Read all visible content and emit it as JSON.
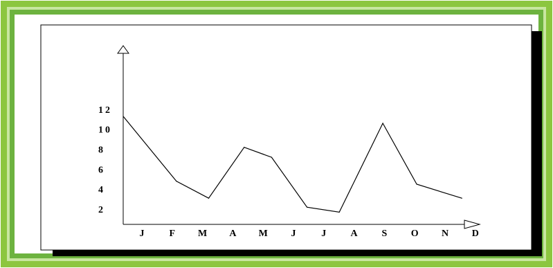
{
  "colors": {
    "frame_outer": "#8cc63f",
    "frame_inner": "#6db33f",
    "frame_light": "#c8e6a0",
    "shadow": "#000000",
    "panel": "#ffffff",
    "line": "#000000"
  },
  "chart_data": {
    "type": "line",
    "title": "",
    "xlabel": "",
    "ylabel": "",
    "categories": [
      "J",
      "F",
      "M",
      "A",
      "M",
      "J",
      "J",
      "A",
      "S",
      "O",
      "N",
      "D"
    ],
    "x_tick_labels": [
      "J",
      "F",
      "M",
      "A",
      "M",
      "J",
      "J",
      "A",
      "S",
      "O",
      "N",
      "D"
    ],
    "y_tick_labels": [
      "2",
      "4",
      "6",
      "8",
      "10",
      "12"
    ],
    "y_ticks": [
      2,
      4,
      6,
      8,
      10,
      12
    ],
    "ylim": [
      1,
      12
    ],
    "grid": false,
    "legend": "none",
    "series": [
      {
        "x": [
          0,
          2,
          3,
          4,
          5,
          6,
          7,
          8,
          10,
          11,
          12
        ],
        "values": [
          11.3,
          4.8,
          3.1,
          8.2,
          7.2,
          2.2,
          1.7,
          10.6,
          4.5,
          3.1,
          3.1
        ]
      }
    ],
    "line_points": [
      {
        "x": 0.0,
        "y": 11.3
      },
      {
        "x": 1.65,
        "y": 4.8
      },
      {
        "x": 2.65,
        "y": 3.1
      },
      {
        "x": 3.75,
        "y": 8.2
      },
      {
        "x": 4.6,
        "y": 7.2
      },
      {
        "x": 5.7,
        "y": 2.2
      },
      {
        "x": 6.7,
        "y": 1.7
      },
      {
        "x": 8.05,
        "y": 10.6
      },
      {
        "x": 9.1,
        "y": 4.5
      },
      {
        "x": 10.5,
        "y": 3.1
      }
    ]
  }
}
